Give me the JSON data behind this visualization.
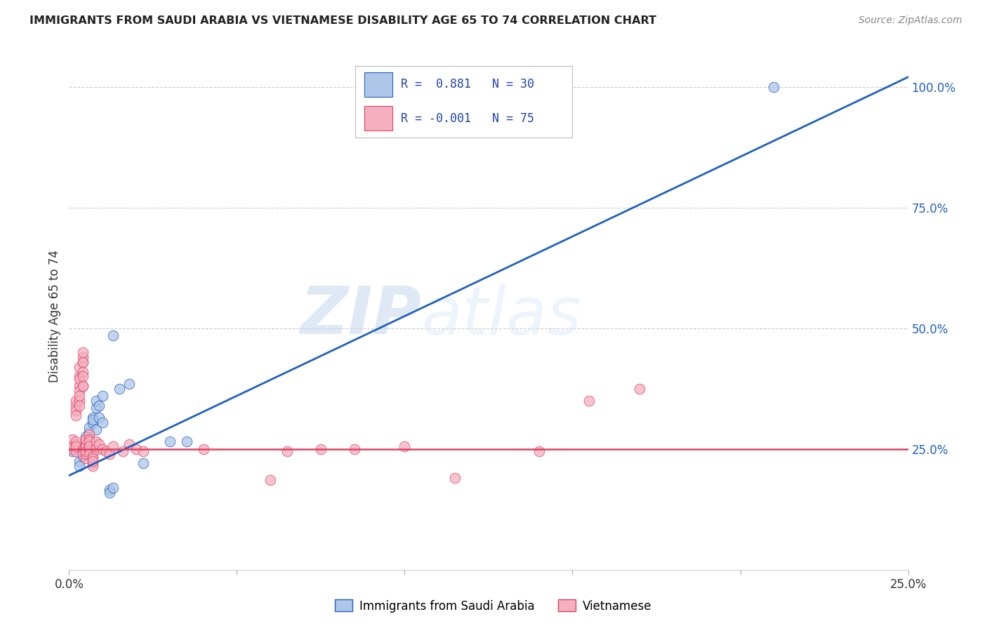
{
  "title": "IMMIGRANTS FROM SAUDI ARABIA VS VIETNAMESE DISABILITY AGE 65 TO 74 CORRELATION CHART",
  "source": "Source: ZipAtlas.com",
  "ylabel": "Disability Age 65 to 74",
  "xlim": [
    0.0,
    0.25
  ],
  "ylim": [
    0.0,
    1.05
  ],
  "yticks_right": [
    0.25,
    0.5,
    0.75,
    1.0
  ],
  "ytick_labels_right": [
    "25.0%",
    "50.0%",
    "75.0%",
    "100.0%"
  ],
  "r_saudi": 0.881,
  "n_saudi": 30,
  "r_vietnamese": -0.001,
  "n_vietnamese": 75,
  "saudi_color": "#aec6e8",
  "vietnamese_color": "#f4afc0",
  "saudi_line_color": "#2060c0",
  "vietnamese_line_color": "#e04060",
  "background_color": "#ffffff",
  "grid_color": "#cccccc",
  "watermark_zip": "ZIP",
  "watermark_atlas": "atlas",
  "saudi_scatter": [
    [
      0.001,
      0.245
    ],
    [
      0.003,
      0.225
    ],
    [
      0.003,
      0.215
    ],
    [
      0.004,
      0.235
    ],
    [
      0.004,
      0.255
    ],
    [
      0.005,
      0.275
    ],
    [
      0.005,
      0.265
    ],
    [
      0.006,
      0.285
    ],
    [
      0.006,
      0.295
    ],
    [
      0.006,
      0.27
    ],
    [
      0.007,
      0.315
    ],
    [
      0.007,
      0.305
    ],
    [
      0.007,
      0.31
    ],
    [
      0.008,
      0.29
    ],
    [
      0.008,
      0.335
    ],
    [
      0.008,
      0.35
    ],
    [
      0.009,
      0.315
    ],
    [
      0.009,
      0.34
    ],
    [
      0.01,
      0.36
    ],
    [
      0.01,
      0.305
    ],
    [
      0.012,
      0.165
    ],
    [
      0.012,
      0.16
    ],
    [
      0.013,
      0.17
    ],
    [
      0.013,
      0.485
    ],
    [
      0.015,
      0.375
    ],
    [
      0.018,
      0.385
    ],
    [
      0.022,
      0.22
    ],
    [
      0.03,
      0.265
    ],
    [
      0.035,
      0.265
    ],
    [
      0.21,
      1.0
    ]
  ],
  "vietnamese_scatter": [
    [
      0.001,
      0.25
    ],
    [
      0.001,
      0.27
    ],
    [
      0.001,
      0.255
    ],
    [
      0.002,
      0.26
    ],
    [
      0.002,
      0.245
    ],
    [
      0.002,
      0.265
    ],
    [
      0.002,
      0.255
    ],
    [
      0.002,
      0.34
    ],
    [
      0.002,
      0.33
    ],
    [
      0.002,
      0.35
    ],
    [
      0.002,
      0.32
    ],
    [
      0.003,
      0.38
    ],
    [
      0.003,
      0.37
    ],
    [
      0.003,
      0.35
    ],
    [
      0.003,
      0.4
    ],
    [
      0.003,
      0.395
    ],
    [
      0.003,
      0.42
    ],
    [
      0.003,
      0.36
    ],
    [
      0.003,
      0.34
    ],
    [
      0.004,
      0.43
    ],
    [
      0.004,
      0.41
    ],
    [
      0.004,
      0.38
    ],
    [
      0.004,
      0.44
    ],
    [
      0.004,
      0.45
    ],
    [
      0.004,
      0.43
    ],
    [
      0.004,
      0.4
    ],
    [
      0.004,
      0.38
    ],
    [
      0.004,
      0.25
    ],
    [
      0.004,
      0.245
    ],
    [
      0.004,
      0.24
    ],
    [
      0.005,
      0.27
    ],
    [
      0.005,
      0.255
    ],
    [
      0.005,
      0.245
    ],
    [
      0.005,
      0.25
    ],
    [
      0.005,
      0.26
    ],
    [
      0.005,
      0.23
    ],
    [
      0.005,
      0.24
    ],
    [
      0.005,
      0.255
    ],
    [
      0.005,
      0.27
    ],
    [
      0.005,
      0.245
    ],
    [
      0.006,
      0.28
    ],
    [
      0.006,
      0.27
    ],
    [
      0.006,
      0.255
    ],
    [
      0.006,
      0.25
    ],
    [
      0.006,
      0.265
    ],
    [
      0.006,
      0.245
    ],
    [
      0.006,
      0.255
    ],
    [
      0.006,
      0.24
    ],
    [
      0.007,
      0.235
    ],
    [
      0.007,
      0.22
    ],
    [
      0.007,
      0.23
    ],
    [
      0.007,
      0.215
    ],
    [
      0.007,
      0.225
    ],
    [
      0.008,
      0.25
    ],
    [
      0.008,
      0.255
    ],
    [
      0.008,
      0.265
    ],
    [
      0.009,
      0.26
    ],
    [
      0.01,
      0.25
    ],
    [
      0.011,
      0.245
    ],
    [
      0.012,
      0.24
    ],
    [
      0.013,
      0.255
    ],
    [
      0.016,
      0.245
    ],
    [
      0.018,
      0.26
    ],
    [
      0.02,
      0.25
    ],
    [
      0.022,
      0.245
    ],
    [
      0.04,
      0.25
    ],
    [
      0.06,
      0.185
    ],
    [
      0.065,
      0.245
    ],
    [
      0.075,
      0.25
    ],
    [
      0.085,
      0.25
    ],
    [
      0.1,
      0.255
    ],
    [
      0.115,
      0.19
    ],
    [
      0.14,
      0.245
    ],
    [
      0.155,
      0.35
    ],
    [
      0.17,
      0.375
    ]
  ],
  "saudi_regline": [
    [
      0.0,
      0.195
    ],
    [
      0.25,
      1.02
    ]
  ],
  "vietnamese_regline": [
    [
      0.0,
      0.25
    ],
    [
      0.25,
      0.25
    ]
  ]
}
